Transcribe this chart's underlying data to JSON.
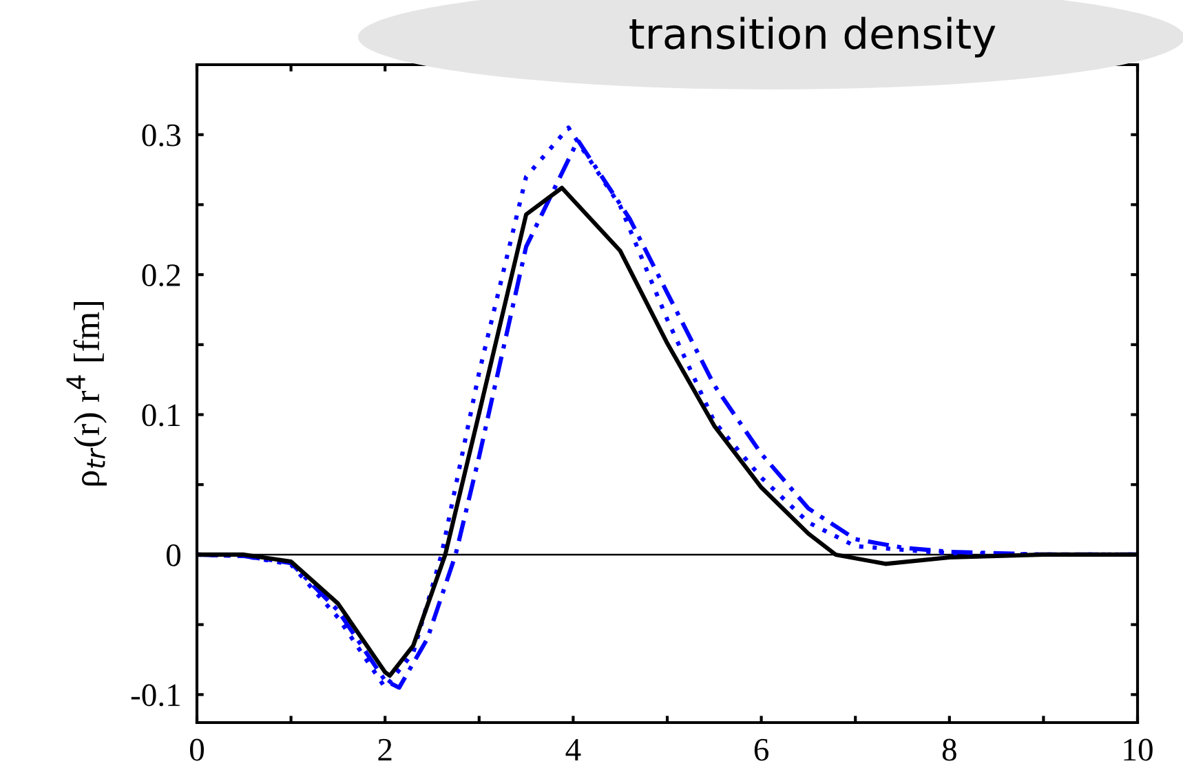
{
  "chart_data": {
    "type": "line",
    "title": "transition density",
    "ylabel": "ρ$_{tr}$(r) r$^{4}$ [fm]",
    "xlim": [
      0,
      10
    ],
    "ylim": [
      -0.12,
      0.35
    ],
    "xticks": [
      0,
      {
        "value": 1,
        "label": null
      },
      2,
      {
        "value": 3,
        "label": null
      },
      4,
      {
        "value": 5,
        "label": null
      },
      6,
      {
        "value": 7,
        "label": null
      },
      8,
      {
        "value": 9,
        "label": null
      },
      10
    ],
    "yticks": [
      {
        "value": -0.1,
        "label": "-0.1"
      },
      {
        "value": -0.05,
        "label": null
      },
      0,
      {
        "value": 0.05,
        "label": null
      },
      0.1,
      {
        "value": 0.15,
        "label": null
      },
      0.2,
      {
        "value": 0.25,
        "label": null
      },
      0.3
    ],
    "grid": false,
    "legend": false,
    "ref_lines": [
      {
        "axis": "y",
        "value": 0,
        "color": "#000000",
        "line_style": "solid"
      }
    ],
    "series": [
      {
        "color": "#0000ff",
        "line_style": "dotted",
        "x": [
          0,
          0.5,
          1,
          1.5,
          2,
          2.3,
          2.6,
          3,
          3.5,
          3.95,
          4.5,
          5,
          5.5,
          6,
          6.5,
          7,
          8,
          9,
          10
        ],
        "values": [
          0,
          -0.001,
          -0.007,
          -0.045,
          -0.095,
          -0.07,
          0,
          0.13,
          0.27,
          0.305,
          0.249,
          0.168,
          0.095,
          0.055,
          0.023,
          0.006,
          0.001,
          0,
          0
        ]
      },
      {
        "color": "#0000ff",
        "line_style": "dashdot",
        "x": [
          0,
          0.5,
          1,
          1.5,
          2,
          2.15,
          2.45,
          2.75,
          3,
          3.5,
          4.05,
          4.6,
          5,
          5.5,
          6,
          6.5,
          7,
          7.5,
          8,
          9,
          10
        ],
        "values": [
          0,
          -0.001,
          -0.006,
          -0.04,
          -0.09,
          -0.095,
          -0.06,
          0,
          0.07,
          0.22,
          0.296,
          0.24,
          0.187,
          0.121,
          0.072,
          0.033,
          0.011,
          0.005,
          0.002,
          0,
          0
        ]
      },
      {
        "color": "#000000",
        "line_style": "solid",
        "x": [
          0,
          0.5,
          1,
          1.5,
          2,
          2.05,
          2.3,
          2.64,
          3,
          3.5,
          3.88,
          4.5,
          5,
          5.5,
          6,
          6.5,
          6.79,
          7.32,
          8,
          9,
          10
        ],
        "values": [
          0,
          0,
          -0.005,
          -0.035,
          -0.084,
          -0.0865,
          -0.065,
          0,
          0.101,
          0.243,
          0.262,
          0.217,
          0.151,
          0.092,
          0.048,
          0.015,
          0,
          -0.0066,
          -0.002,
          0,
          0
        ]
      }
    ]
  }
}
